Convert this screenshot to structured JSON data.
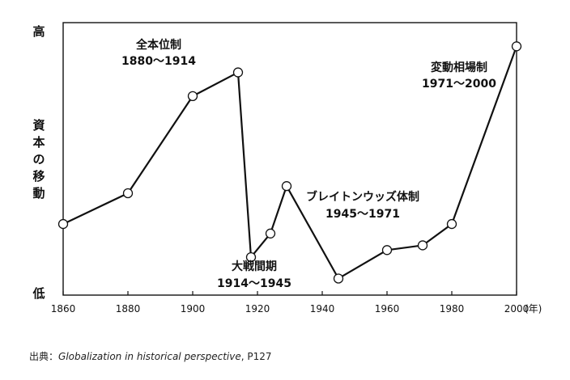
{
  "chart_data": {
    "type": "line",
    "y_axis": {
      "high_label": "高",
      "low_label": "低",
      "title_chars": [
        "資",
        "本",
        "の",
        "移",
        "動"
      ],
      "scale": "qualitative"
    },
    "x_axis": {
      "ticks": [
        1860,
        1880,
        1900,
        1920,
        1940,
        1960,
        1980,
        2000
      ],
      "unit_label": "(年)",
      "range": [
        1860,
        2000
      ]
    },
    "series": [
      {
        "points": [
          {
            "x": 1860,
            "y": 30
          },
          {
            "x": 1880,
            "y": 43
          },
          {
            "x": 1900,
            "y": 84
          },
          {
            "x": 1914,
            "y": 94
          },
          {
            "x": 1918,
            "y": 16
          },
          {
            "x": 1924,
            "y": 26
          },
          {
            "x": 1929,
            "y": 46
          },
          {
            "x": 1945,
            "y": 7
          },
          {
            "x": 1960,
            "y": 19
          },
          {
            "x": 1971,
            "y": 21
          },
          {
            "x": 1980,
            "y": 30
          },
          {
            "x": 2000,
            "y": 105
          }
        ]
      }
    ],
    "ylim": [
      0,
      115
    ],
    "grid": false,
    "annotations": [
      {
        "line1": "全本位制",
        "line2": "1880〜1914"
      },
      {
        "line1": "大戦間期",
        "line2": "1914〜1945"
      },
      {
        "line1": "ブレイトンウッズ体制",
        "line2": "1945〜1971"
      },
      {
        "line1": "変動相場制",
        "line2": "1971〜2000"
      }
    ]
  },
  "source": {
    "prefix": "出典：",
    "title": "Globalization in historical perspective",
    "suffix": ", P127"
  }
}
